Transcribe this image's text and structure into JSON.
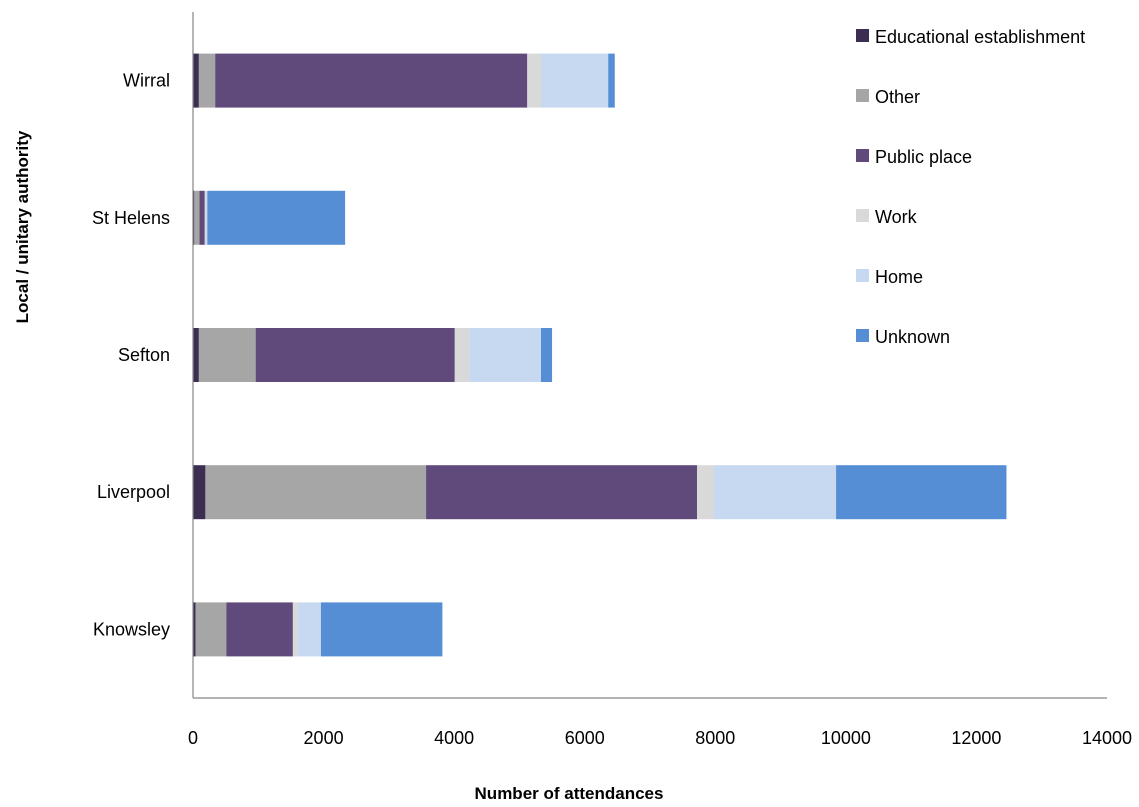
{
  "chart_data": {
    "type": "bar",
    "orientation": "horizontal",
    "stacked": true,
    "categories": [
      "Knowsley",
      "Liverpool",
      "Sefton",
      "St Helens",
      "Wirral"
    ],
    "series": [
      {
        "name": "Educational establishment",
        "color": "#3b2e52",
        "values": [
          40,
          190,
          90,
          20,
          90
        ]
      },
      {
        "name": "Other",
        "color": "#a6a6a6",
        "values": [
          470,
          3380,
          870,
          80,
          250
        ]
      },
      {
        "name": "Public place",
        "color": "#604a7b",
        "values": [
          1020,
          4150,
          3050,
          80,
          4780
        ]
      },
      {
        "name": "Work",
        "color": "#d9d9d9",
        "values": [
          80,
          260,
          220,
          20,
          210
        ]
      },
      {
        "name": "Home",
        "color": "#c6d9f1",
        "values": [
          350,
          1870,
          1100,
          20,
          1030
        ]
      },
      {
        "name": "Unknown",
        "color": "#558ed5",
        "values": [
          1860,
          2610,
          170,
          2110,
          100
        ]
      }
    ],
    "xlim": [
      0,
      14000
    ],
    "xticks": [
      0,
      2000,
      4000,
      6000,
      8000,
      10000,
      12000,
      14000
    ],
    "xticklabels": [
      "0",
      "2000",
      "4000",
      "6000",
      "8000",
      "10000",
      "12000",
      "14000"
    ],
    "xlabel": "Number of attendances",
    "ylabel": "Local / unitary authority",
    "grid": false,
    "legend_position": "top-right"
  }
}
